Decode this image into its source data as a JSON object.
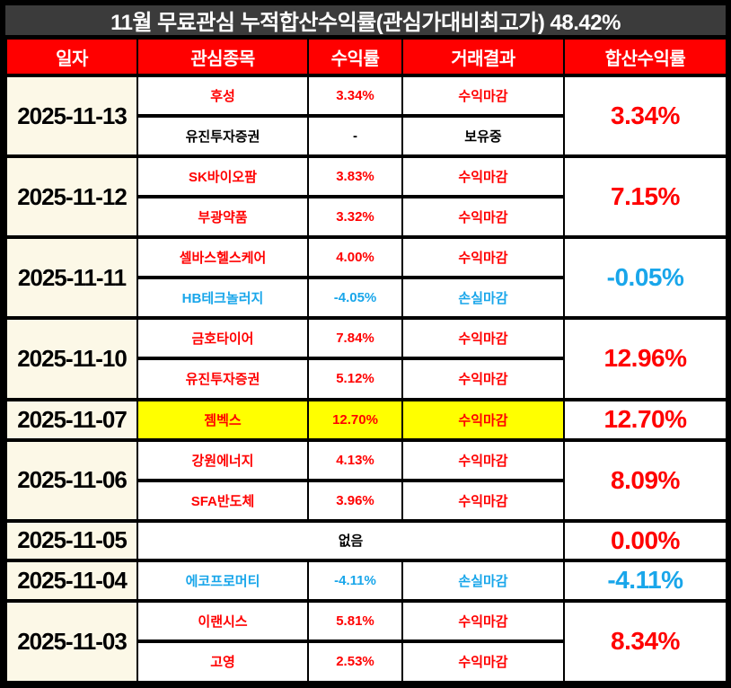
{
  "title": "11월 무료관심 누적합산수익률(관심가대비최고가) 48.42%",
  "columns": [
    "일자",
    "관심종목",
    "수익률",
    "거래결과",
    "합산수익률"
  ],
  "colors": {
    "title_bg": "#3b3b3b",
    "header_bg": "#ff0000",
    "date_bg": "#fcf8e7",
    "highlight": "#ffff00",
    "red": "#ff0000",
    "blue": "#19a6ea",
    "black": "#000000"
  },
  "groups": [
    {
      "date": "2025-11-13",
      "total": "3.34%",
      "total_color": "red",
      "rows": [
        {
          "stock": "후성",
          "return": "3.34%",
          "result": "수익마감",
          "color": "red"
        },
        {
          "stock": "유진투자증권",
          "return": "-",
          "result": "보유중",
          "color": "black"
        }
      ]
    },
    {
      "date": "2025-11-12",
      "total": "7.15%",
      "total_color": "red",
      "rows": [
        {
          "stock": "SK바이오팜",
          "return": "3.83%",
          "result": "수익마감",
          "color": "red"
        },
        {
          "stock": "부광약품",
          "return": "3.32%",
          "result": "수익마감",
          "color": "red"
        }
      ]
    },
    {
      "date": "2025-11-11",
      "total": "-0.05%",
      "total_color": "blue",
      "rows": [
        {
          "stock": "셀바스헬스케어",
          "return": "4.00%",
          "result": "수익마감",
          "color": "red"
        },
        {
          "stock": "HB테크놀러지",
          "return": "-4.05%",
          "result": "손실마감",
          "color": "blue"
        }
      ]
    },
    {
      "date": "2025-11-10",
      "total": "12.96%",
      "total_color": "red",
      "rows": [
        {
          "stock": "금호타이어",
          "return": "7.84%",
          "result": "수익마감",
          "color": "red"
        },
        {
          "stock": "유진투자증권",
          "return": "5.12%",
          "result": "수익마감",
          "color": "red"
        }
      ]
    },
    {
      "date": "2025-11-07",
      "total": "12.70%",
      "total_color": "red",
      "rows": [
        {
          "stock": "젬벡스",
          "return": "12.70%",
          "result": "수익마감",
          "color": "red",
          "highlight": true
        }
      ]
    },
    {
      "date": "2025-11-06",
      "total": "8.09%",
      "total_color": "red",
      "rows": [
        {
          "stock": "강원에너지",
          "return": "4.13%",
          "result": "수익마감",
          "color": "red"
        },
        {
          "stock": "SFA반도체",
          "return": "3.96%",
          "result": "수익마감",
          "color": "red"
        }
      ]
    },
    {
      "date": "2025-11-05",
      "total": "0.00%",
      "total_color": "red",
      "rows": [
        {
          "merged": true,
          "stock": "없음",
          "color": "black"
        }
      ]
    },
    {
      "date": "2025-11-04",
      "total": "-4.11%",
      "total_color": "blue",
      "rows": [
        {
          "stock": "에코프로머티",
          "return": "-4.11%",
          "result": "손실마감",
          "color": "blue"
        }
      ]
    },
    {
      "date": "2025-11-03",
      "total": "8.34%",
      "total_color": "red",
      "rows": [
        {
          "stock": "이랜시스",
          "return": "5.81%",
          "result": "수익마감",
          "color": "red"
        },
        {
          "stock": "고영",
          "return": "2.53%",
          "result": "수익마감",
          "color": "red"
        }
      ]
    }
  ]
}
